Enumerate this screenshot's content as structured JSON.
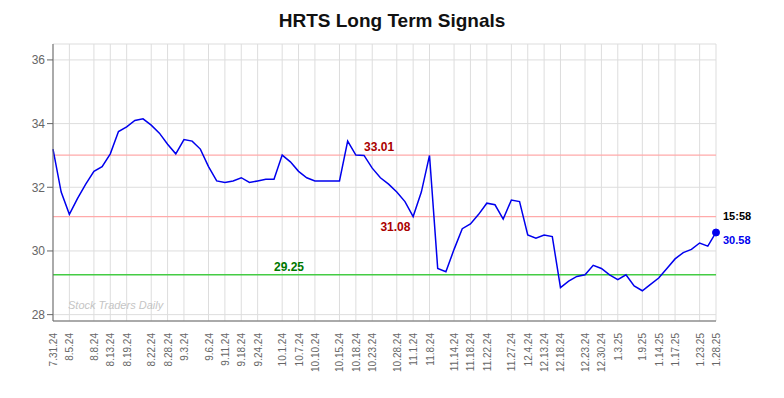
{
  "chart_data": {
    "type": "line",
    "title": "HRTS Long Term Signals",
    "categories": [
      "7.31.24",
      null,
      "8.5.24",
      null,
      null,
      "8.8.24",
      null,
      "8.13.24",
      null,
      "8.19.24",
      null,
      null,
      "8.22.24",
      null,
      "8.28.24",
      null,
      "9.3.24",
      null,
      null,
      "9.6.24",
      null,
      "9.11.24",
      null,
      "9.18.24",
      null,
      "9.24.24",
      null,
      null,
      "10.1.24",
      null,
      "10.7.24",
      null,
      "10.10.24",
      null,
      null,
      "10.15.24",
      null,
      "10.18.24",
      null,
      "10.23.24",
      null,
      null,
      "10.28.24",
      null,
      "11.1.24",
      null,
      "11.8.24",
      null,
      null,
      "11.14.24",
      null,
      "11.18.24",
      null,
      "11.22.24",
      null,
      null,
      "11.27.24",
      null,
      "12.4.24",
      null,
      "12.13.24",
      null,
      "12.18.24",
      null,
      null,
      "12.23.24",
      null,
      "12.30.24",
      null,
      "1.3.25",
      null,
      null,
      "1.9.25",
      null,
      "1.14.25",
      null,
      "1.17.25",
      null,
      null,
      "1.23.25",
      null,
      "1.28.25"
    ],
    "values": [
      33.2,
      31.85,
      31.15,
      31.65,
      32.1,
      32.5,
      32.65,
      33.05,
      33.75,
      33.9,
      34.1,
      34.15,
      33.95,
      33.7,
      33.35,
      33.05,
      33.5,
      33.45,
      33.2,
      32.65,
      32.2,
      32.15,
      32.2,
      32.3,
      32.15,
      32.2,
      32.25,
      32.25,
      33.01,
      32.8,
      32.5,
      32.3,
      32.2,
      32.2,
      32.2,
      32.2,
      33.45,
      33.01,
      33.0,
      32.6,
      32.3,
      32.1,
      31.85,
      31.55,
      31.08,
      31.85,
      33.0,
      29.45,
      29.35,
      30.05,
      30.7,
      30.85,
      31.15,
      31.5,
      31.45,
      31.0,
      31.6,
      31.55,
      30.5,
      30.4,
      30.5,
      30.45,
      28.85,
      29.05,
      29.2,
      29.25,
      29.55,
      29.45,
      29.25,
      29.1,
      29.25,
      28.9,
      28.75,
      28.95,
      29.15,
      29.45,
      29.75,
      29.95,
      30.05,
      30.25,
      30.15,
      30.58
    ],
    "color": "#0000ee",
    "ylim": [
      27.8,
      36.5
    ],
    "yticks": [
      28,
      30,
      32,
      34,
      36
    ],
    "grid": true,
    "hlines": [
      {
        "value": 33.01,
        "color": "#ffaaaa",
        "label": "33.01",
        "label_color": "#aa0000"
      },
      {
        "value": 31.08,
        "color": "#ffaaaa",
        "label": "31.08",
        "label_color": "#aa0000"
      },
      {
        "value": 29.25,
        "color": "#44cc44",
        "label": "29.25",
        "label_color": "#007700"
      }
    ],
    "annotations": [
      {
        "text": "15:58",
        "color": "#000000"
      },
      {
        "text": "30.58",
        "color": "#0000ee"
      },
      {
        "text": "Stock Traders Daily",
        "color": "#bbbbbb"
      }
    ]
  }
}
